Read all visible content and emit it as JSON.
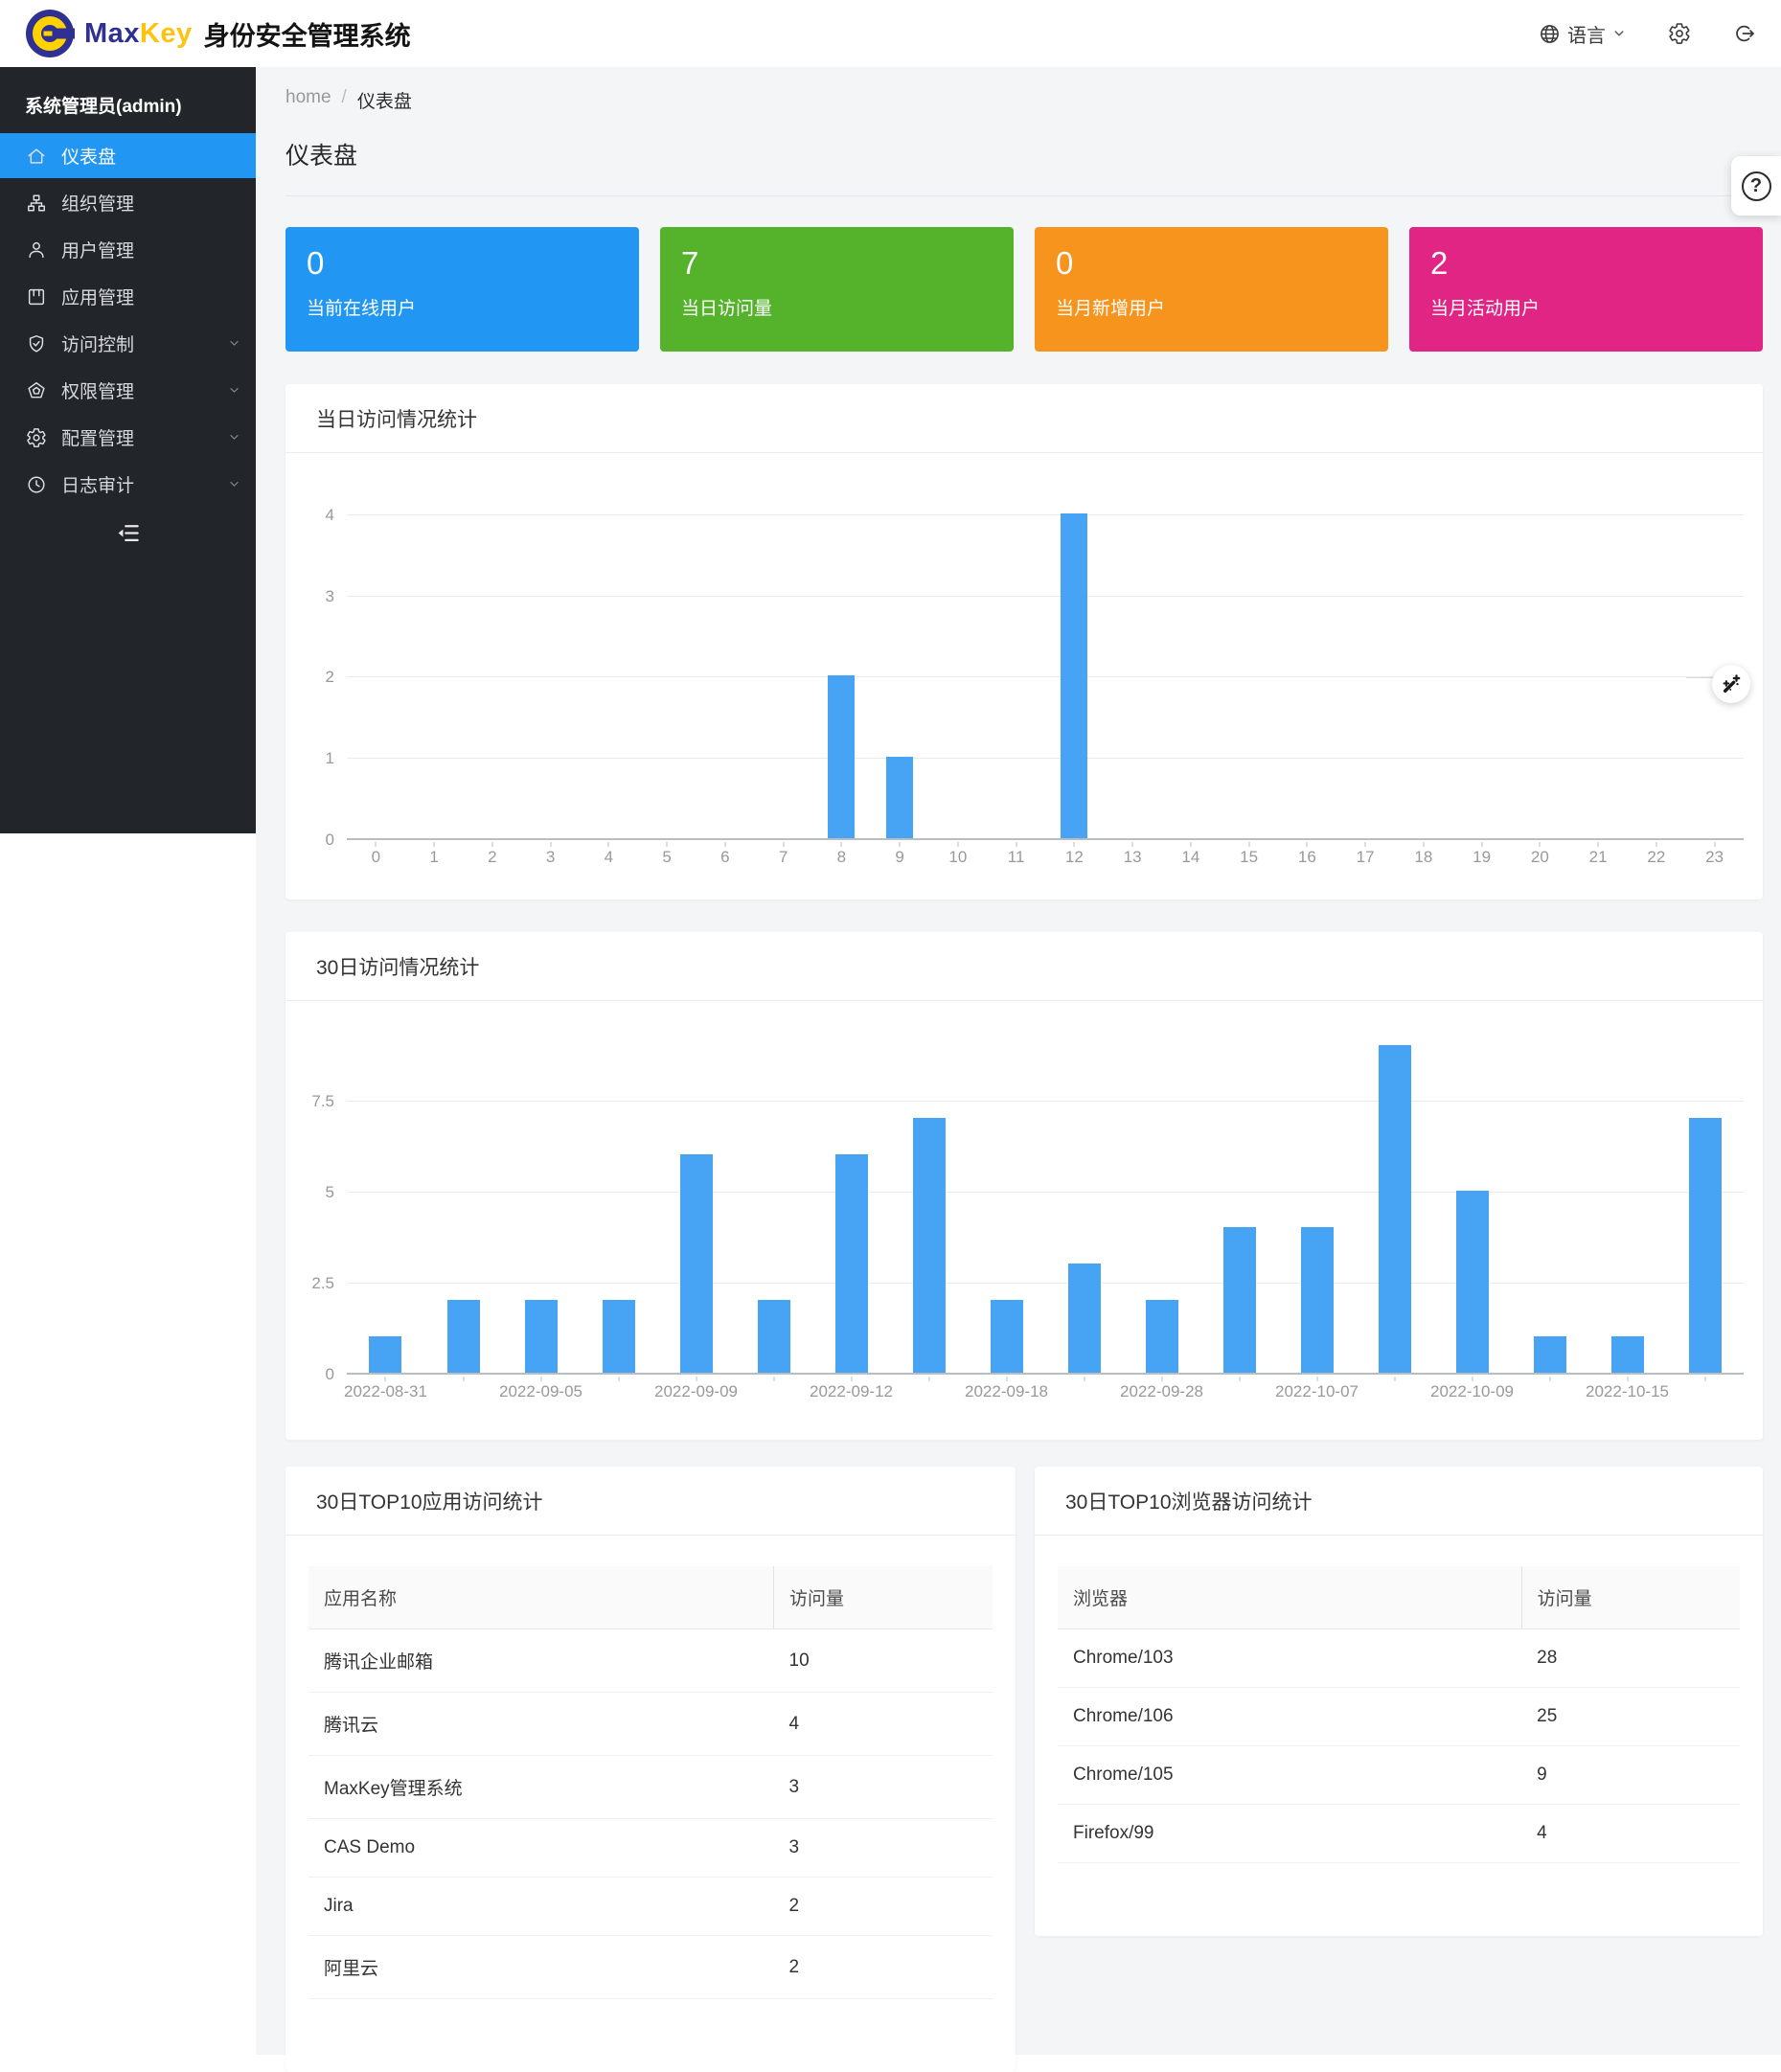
{
  "header": {
    "brand_max": "Max",
    "brand_key": "Key",
    "brand_title": "身份安全管理系统",
    "language_label": "语言"
  },
  "sidebar": {
    "user": "系统管理员(admin)",
    "items": [
      {
        "label": "仪表盘",
        "icon": "home",
        "active": true,
        "expandable": false
      },
      {
        "label": "组织管理",
        "icon": "org",
        "active": false,
        "expandable": false
      },
      {
        "label": "用户管理",
        "icon": "user",
        "active": false,
        "expandable": false
      },
      {
        "label": "应用管理",
        "icon": "app",
        "active": false,
        "expandable": false
      },
      {
        "label": "访问控制",
        "icon": "shield",
        "active": false,
        "expandable": true
      },
      {
        "label": "权限管理",
        "icon": "pentagon",
        "active": false,
        "expandable": true
      },
      {
        "label": "配置管理",
        "icon": "gear",
        "active": false,
        "expandable": true
      },
      {
        "label": "日志审计",
        "icon": "clock",
        "active": false,
        "expandable": true
      }
    ]
  },
  "breadcrumb": {
    "home": "home",
    "sep": "/",
    "current": "仪表盘"
  },
  "page_title": "仪表盘",
  "stat_cards": [
    {
      "value": "0",
      "label": "当前在线用户",
      "color": "#2196F3"
    },
    {
      "value": "7",
      "label": "当日访问量",
      "color": "#54B32B"
    },
    {
      "value": "0",
      "label": "当月新增用户",
      "color": "#F7941E"
    },
    {
      "value": "2",
      "label": "当月活动用户",
      "color": "#E02585"
    }
  ],
  "chart_data": [
    {
      "type": "bar",
      "title": "当日访问情况统计",
      "categories": [
        "0",
        "1",
        "2",
        "3",
        "4",
        "5",
        "6",
        "7",
        "8",
        "9",
        "10",
        "11",
        "12",
        "13",
        "14",
        "15",
        "16",
        "17",
        "18",
        "19",
        "20",
        "21",
        "22",
        "23"
      ],
      "values": [
        0,
        0,
        0,
        0,
        0,
        0,
        0,
        0,
        2,
        1,
        0,
        0,
        4,
        0,
        0,
        0,
        0,
        0,
        0,
        0,
        0,
        0,
        0,
        0
      ],
      "xlabel": "",
      "ylabel": "",
      "yticks": [
        0,
        1,
        2,
        3,
        4
      ],
      "ylim": [
        0,
        4.35
      ],
      "grid": true,
      "legend": "none",
      "bar_color": "#47A3F3"
    },
    {
      "type": "bar",
      "title": "30日访问情况统计",
      "categories": [
        "2022-08-31",
        "",
        "2022-09-05",
        "",
        "2022-09-09",
        "",
        "2022-09-12",
        "",
        "2022-09-18",
        "",
        "2022-09-28",
        "",
        "2022-10-07",
        "",
        "2022-10-09",
        "",
        "2022-10-15",
        ""
      ],
      "values": [
        1,
        2,
        2,
        2,
        6,
        2,
        6,
        7,
        2,
        3,
        2,
        4,
        4,
        9,
        5,
        1,
        1,
        7
      ],
      "xlabel": "",
      "ylabel": "",
      "yticks": [
        0,
        2.5,
        5,
        7.5
      ],
      "ylim": [
        0,
        9.6
      ],
      "grid": true,
      "legend": "none",
      "bar_color": "#47A3F3"
    }
  ],
  "tables": [
    {
      "title": "30日TOP10应用访问统计",
      "columns": [
        "应用名称",
        "访问量"
      ],
      "rows": [
        [
          "腾讯企业邮箱",
          "10"
        ],
        [
          "腾讯云",
          "4"
        ],
        [
          "MaxKey管理系统",
          "3"
        ],
        [
          "CAS Demo",
          "3"
        ],
        [
          "Jira",
          "2"
        ],
        [
          "阿里云",
          "2"
        ]
      ]
    },
    {
      "title": "30日TOP10浏览器访问统计",
      "columns": [
        "浏览器",
        "访问量"
      ],
      "rows": [
        [
          "Chrome/103",
          "28"
        ],
        [
          "Chrome/106",
          "25"
        ],
        [
          "Chrome/105",
          "9"
        ],
        [
          "Firefox/99",
          "4"
        ]
      ]
    }
  ],
  "floating": {
    "help_glyph": "?"
  },
  "colors": {
    "sidebar_bg": "#222529",
    "active_item": "#2196F3",
    "main_bg": "#F4F5F7",
    "bar": "#47A3F3",
    "brand_navy": "#2E3192",
    "brand_yellow": "#FFC20E"
  }
}
